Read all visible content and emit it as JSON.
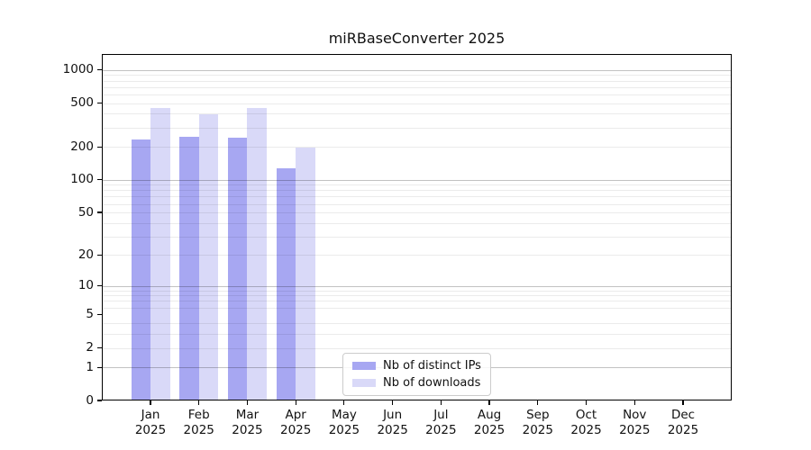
{
  "chart_data": {
    "type": "bar",
    "title": "miRBaseConverter 2025",
    "scale": "log1p",
    "categories": [
      "Jan",
      "Feb",
      "Mar",
      "Apr",
      "May",
      "Jun",
      "Jul",
      "Aug",
      "Sep",
      "Oct",
      "Nov",
      "Dec"
    ],
    "x_year": "2025",
    "series": [
      {
        "name": "Nb of distinct IPs",
        "color": "#a7a7f2",
        "values": [
          234,
          248,
          244,
          128,
          0,
          0,
          0,
          0,
          0,
          0,
          0,
          0
        ]
      },
      {
        "name": "Nb of downloads",
        "color": "#d9d9f8",
        "values": [
          453,
          397,
          450,
          196,
          0,
          0,
          0,
          0,
          0,
          0,
          0,
          0
        ]
      }
    ],
    "y_ticks": [
      0,
      1,
      2,
      5,
      10,
      20,
      50,
      100,
      200,
      500,
      1000
    ],
    "grid_major": [
      1,
      10,
      100,
      1000
    ],
    "grid_minor": [
      2,
      3,
      4,
      6,
      7,
      8,
      9,
      20,
      30,
      40,
      50,
      60,
      70,
      80,
      90,
      200,
      300,
      400,
      500,
      600,
      700,
      800,
      900
    ],
    "ylim": [
      0,
      1400
    ],
    "grid": true,
    "legend_position": "lower-center"
  }
}
